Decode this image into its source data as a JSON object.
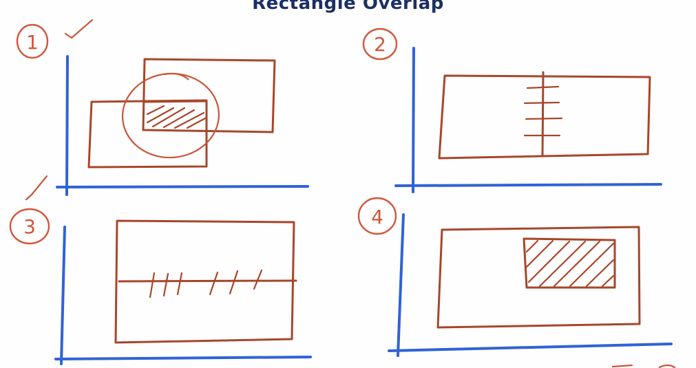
{
  "title": "Rectangle Overlap",
  "panels": [
    {
      "label": "1"
    },
    {
      "label": "2"
    },
    {
      "label": "3"
    },
    {
      "label": "4"
    }
  ],
  "colors": {
    "axis": "#2f63d6",
    "rectangle": "#a8452a",
    "annotation": "#d2553a",
    "title": "#1b2f63"
  }
}
